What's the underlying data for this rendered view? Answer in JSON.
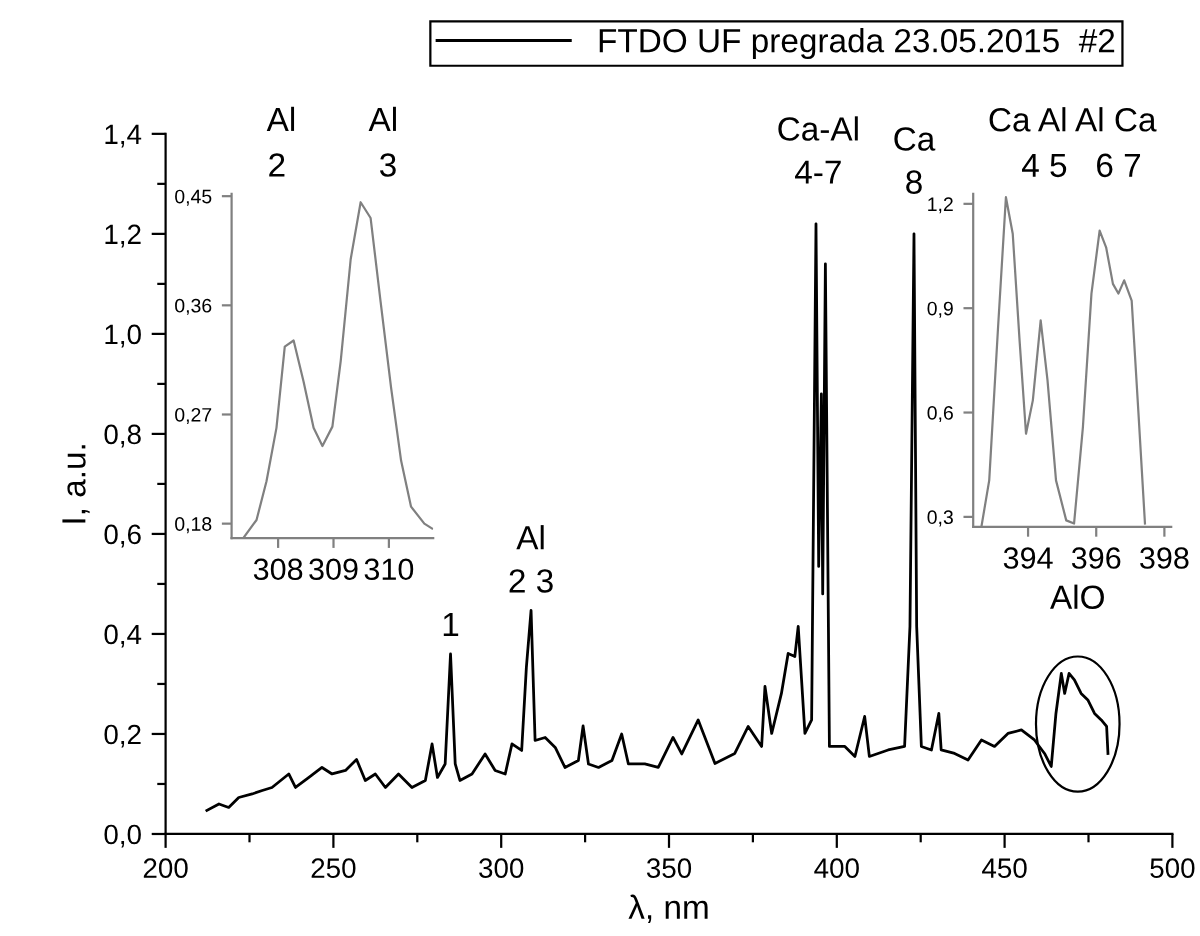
{
  "chart_data": [
    {
      "type": "line",
      "xlabel": "λ, nm",
      "ylabel": "I, a.u.",
      "legend": "top",
      "grid": false,
      "xlim": [
        200,
        500
      ],
      "ylim": [
        0,
        1.4
      ],
      "xticks": [
        200,
        {
          "value": 225,
          "label": null
        },
        250,
        {
          "value": 275,
          "label": null
        },
        300,
        {
          "value": 325,
          "label": null
        },
        350,
        {
          "value": 375,
          "label": null
        },
        400,
        {
          "value": 425,
          "label": null
        },
        450,
        {
          "value": 475,
          "label": null
        },
        500
      ],
      "yticks": [
        {
          "value": 0,
          "label": "0,0"
        },
        {
          "value": 0.1,
          "label": null
        },
        {
          "value": 0.2,
          "label": "0,2"
        },
        {
          "value": 0.3,
          "label": null
        },
        {
          "value": 0.4,
          "label": "0,4"
        },
        {
          "value": 0.5,
          "label": null
        },
        {
          "value": 0.6,
          "label": "0,6"
        },
        {
          "value": 0.7,
          "label": null
        },
        {
          "value": 0.8,
          "label": "0,8"
        },
        {
          "value": 0.9,
          "label": null
        },
        {
          "value": 1.0,
          "label": "1,0"
        },
        {
          "value": 1.1,
          "label": null
        },
        {
          "value": 1.2,
          "label": "1,2"
        },
        {
          "value": 1.3,
          "label": null
        },
        {
          "value": 1.4,
          "label": "1,4"
        }
      ],
      "annotations": [
        {
          "text": "1",
          "x": 284.9,
          "y": 0.36
        },
        {
          "text": "Al\n2 3",
          "x": 308.9,
          "y": 0.447
        },
        {
          "text": "Ca-Al\n4-7",
          "x": 394.5,
          "y": 1.22
        },
        {
          "text": "Ca\n8",
          "x": 423.0,
          "y": 1.2
        },
        "AlO"
      ],
      "series": [
        {
          "name": "FTDO UF pregrada 23.05.2015  #2",
          "color": "#000000",
          "x": [
            212.3,
            215.9,
            218.8,
            221.8,
            225.8,
            228.8,
            231.7,
            236.7,
            238.7,
            242.7,
            246.6,
            249.6,
            253.6,
            256.9,
            259.5,
            262.5,
            265.5,
            269.4,
            273.4,
            277.4,
            279.4,
            281,
            283.3,
            284.9,
            286.3,
            287.7,
            291.3,
            295.2,
            298.2,
            301.2,
            303.2,
            306.1,
            307.5,
            308.9,
            310.1,
            313.1,
            316.1,
            319.0,
            323,
            324.4,
            326,
            329,
            333,
            335.9,
            337.9,
            342.8,
            346.8,
            351.2,
            353.8,
            358.7,
            363.7,
            369.6,
            373.6,
            377.6,
            378.6,
            380.6,
            383.5,
            385.5,
            387.5,
            388.5,
            389.5,
            390.5,
            392.5,
            393.8,
            394.6,
            395.4,
            395.8,
            396.6,
            397.8,
            402.4,
            405.4,
            408.3,
            409.7,
            415.3,
            420.2,
            421.8,
            423.0,
            423.8,
            425.2,
            428.2,
            430.4,
            431.1,
            435.1,
            439.1,
            443.1,
            447.0,
            451.0,
            455.0,
            458.9,
            461.9,
            463.9,
            465.3,
            466.9,
            467.9,
            469.2,
            470.8,
            472.8,
            474.8,
            476.8,
            478.8,
            480.4,
            480.8
          ],
          "values": [
            0.047,
            0.06,
            0.053,
            0.073,
            0.08,
            0.087,
            0.093,
            0.12,
            0.093,
            0.113,
            0.133,
            0.12,
            0.127,
            0.149,
            0.107,
            0.12,
            0.093,
            0.12,
            0.093,
            0.107,
            0.18,
            0.113,
            0.14,
            0.36,
            0.14,
            0.107,
            0.12,
            0.16,
            0.127,
            0.12,
            0.18,
            0.167,
            0.333,
            0.447,
            0.187,
            0.193,
            0.173,
            0.133,
            0.147,
            0.216,
            0.14,
            0.133,
            0.147,
            0.2,
            0.14,
            0.14,
            0.133,
            0.193,
            0.16,
            0.228,
            0.141,
            0.161,
            0.215,
            0.175,
            0.295,
            0.201,
            0.281,
            0.361,
            0.355,
            0.415,
            0.308,
            0.201,
            0.228,
            1.22,
            0.535,
            0.88,
            0.48,
            1.14,
            0.175,
            0.175,
            0.155,
            0.235,
            0.155,
            0.168,
            0.175,
            0.415,
            1.2,
            0.415,
            0.175,
            0.168,
            0.241,
            0.168,
            0.161,
            0.148,
            0.188,
            0.175,
            0.201,
            0.208,
            0.188,
            0.161,
            0.135,
            0.241,
            0.321,
            0.281,
            0.321,
            0.308,
            0.281,
            0.268,
            0.241,
            0.228,
            0.215,
            0.161
          ]
        }
      ]
    },
    {
      "type": "line",
      "xlim": [
        307.16,
        310.8
      ],
      "ylim": [
        0.168,
        0.452
      ],
      "xticks": [
        308,
        309,
        310
      ],
      "yticks": [
        {
          "value": 0.18,
          "label": "0,18"
        },
        {
          "value": 0.27,
          "label": "0,27"
        },
        {
          "value": 0.36,
          "label": "0,36"
        },
        {
          "value": 0.45,
          "label": "0,45"
        }
      ],
      "annotations": [
        "Al        Al\n2          3"
      ],
      "series": [
        {
          "color": "#808080",
          "x": [
            307.37,
            307.61,
            307.79,
            307.97,
            308.12,
            308.28,
            308.46,
            308.64,
            308.8,
            308.98,
            309.13,
            309.31,
            309.49,
            309.67,
            309.85,
            310.04,
            310.22,
            310.4,
            310.64,
            310.78
          ],
          "values": [
            0.168,
            0.183,
            0.215,
            0.259,
            0.326,
            0.331,
            0.297,
            0.259,
            0.244,
            0.26,
            0.314,
            0.398,
            0.445,
            0.432,
            0.363,
            0.292,
            0.232,
            0.194,
            0.18,
            0.176
          ]
        }
      ]
    },
    {
      "type": "line",
      "xlim": [
        392.39,
        398.2
      ],
      "ylim": [
        0.271,
        1.229
      ],
      "xticks": [
        394,
        396,
        398
      ],
      "yticks": [
        {
          "value": 0.3,
          "label": "0,3"
        },
        {
          "value": 0.6,
          "label": "0,6"
        },
        {
          "value": 0.9,
          "label": "0,9"
        },
        {
          "value": 1.2,
          "label": "1,2"
        }
      ],
      "annotations": [
        "Ca Al Al Ca\n  4 5   6 7"
      ],
      "series": [
        {
          "color": "#808080",
          "x": [
            392.63,
            392.86,
            393.12,
            393.35,
            393.55,
            393.75,
            393.94,
            394.14,
            394.37,
            394.57,
            394.82,
            395.12,
            395.35,
            395.61,
            395.86,
            396.1,
            396.29,
            396.49,
            396.65,
            396.82,
            397.04,
            397.24,
            397.43
          ],
          "values": [
            0.271,
            0.405,
            0.846,
            1.219,
            1.114,
            0.808,
            0.539,
            0.635,
            0.865,
            0.693,
            0.405,
            0.29,
            0.281,
            0.559,
            0.942,
            1.123,
            1.075,
            0.97,
            0.942,
            0.98,
            0.922,
            0.597,
            0.281
          ]
        }
      ]
    }
  ]
}
